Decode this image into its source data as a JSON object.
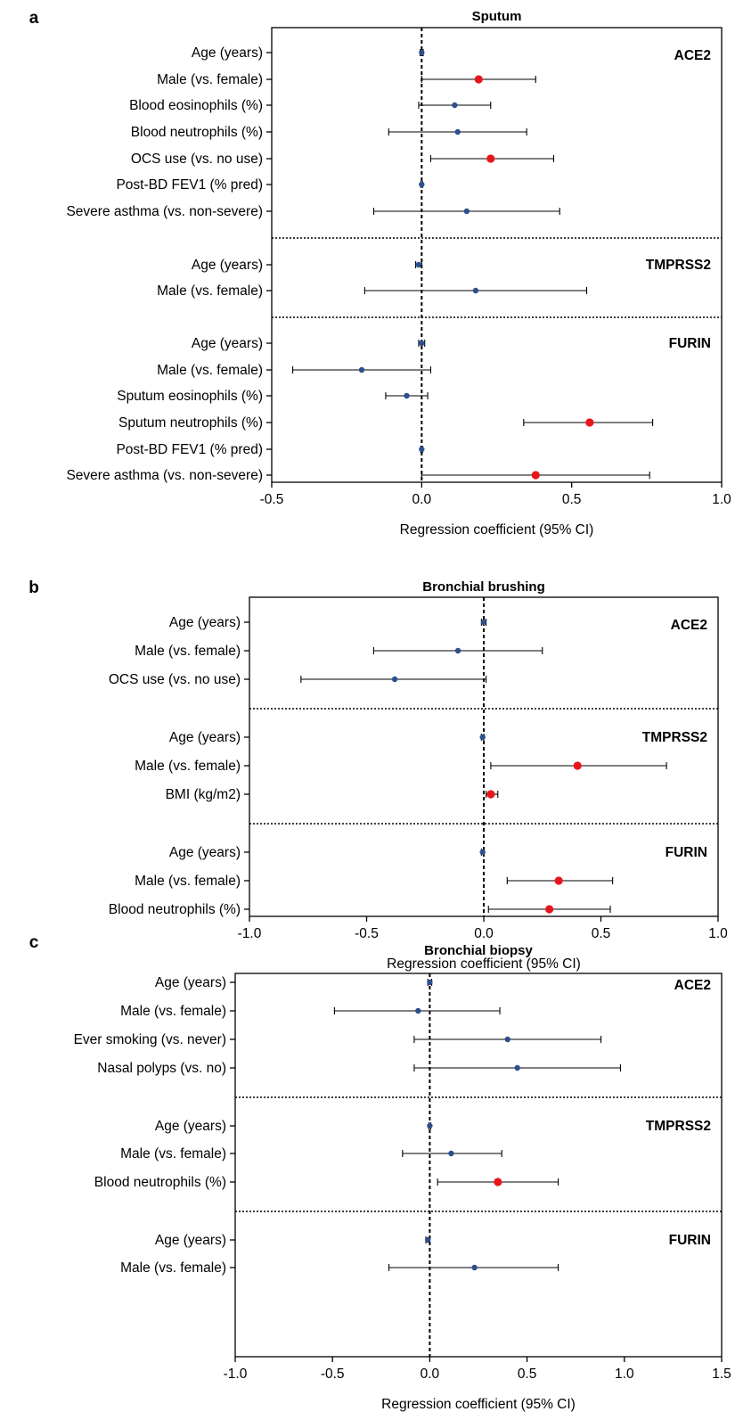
{
  "colors": {
    "significant": "#e8161b",
    "non_significant": "#2e4f8c",
    "line": "#000000"
  },
  "chart_data": [
    {
      "type": "forest",
      "panel_letter": "a",
      "title": "Sputum",
      "xlabel": "Regression coefficient (95% CI)",
      "xlim": [
        -0.5,
        1.0
      ],
      "xticks": [
        -0.5,
        0.0,
        0.5,
        1.0
      ],
      "xtick_labels": [
        "-0.5",
        "0.0",
        "0.5",
        "1.0"
      ],
      "groups": [
        {
          "name": "ACE2",
          "rows": [
            {
              "label": "Age (years)",
              "estimate": 0.0,
              "ci": [
                -0.005,
                0.005
              ],
              "significant": false
            },
            {
              "label": "Male (vs. female)",
              "estimate": 0.19,
              "ci": [
                0.0,
                0.38
              ],
              "significant": true
            },
            {
              "label": "Blood eosinophils (%)",
              "estimate": 0.11,
              "ci": [
                -0.01,
                0.23
              ],
              "significant": false
            },
            {
              "label": "Blood neutrophils (%)",
              "estimate": 0.12,
              "ci": [
                -0.11,
                0.35
              ],
              "significant": false
            },
            {
              "label": "OCS use (vs. no use)",
              "estimate": 0.23,
              "ci": [
                0.03,
                0.44
              ],
              "significant": true
            },
            {
              "label": "Post-BD FEV1 (% pred)",
              "estimate": 0.0,
              "ci": [
                -0.003,
                0.003
              ],
              "significant": false
            },
            {
              "label": "Severe asthma (vs. non-severe)",
              "estimate": 0.15,
              "ci": [
                -0.16,
                0.46
              ],
              "significant": false
            }
          ]
        },
        {
          "name": "TMPRSS2",
          "rows": [
            {
              "label": "Age (years)",
              "estimate": -0.01,
              "ci": [
                -0.02,
                0.0
              ],
              "significant": false
            },
            {
              "label": "Male (vs. female)",
              "estimate": 0.18,
              "ci": [
                -0.19,
                0.55
              ],
              "significant": false
            }
          ]
        },
        {
          "name": "FURIN",
          "rows": [
            {
              "label": "Age (years)",
              "estimate": 0.0,
              "ci": [
                -0.01,
                0.01
              ],
              "significant": false
            },
            {
              "label": "Male (vs. female)",
              "estimate": -0.2,
              "ci": [
                -0.43,
                0.03
              ],
              "significant": false
            },
            {
              "label": "Sputum eosinophils (%)",
              "estimate": -0.05,
              "ci": [
                -0.12,
                0.02
              ],
              "significant": false
            },
            {
              "label": "Sputum neutrophils (%)",
              "estimate": 0.56,
              "ci": [
                0.34,
                0.77
              ],
              "significant": true
            },
            {
              "label": "Post-BD FEV1 (% pred)",
              "estimate": 0.0,
              "ci": [
                -0.003,
                0.003
              ],
              "significant": false
            },
            {
              "label": "Severe asthma (vs. non-severe)",
              "estimate": 0.38,
              "ci": [
                0.0,
                0.76
              ],
              "significant": true
            }
          ]
        }
      ]
    },
    {
      "type": "forest",
      "panel_letter": "b",
      "title": "Bronchial brushing",
      "xlabel": "Regression coefficient (95% CI)",
      "xlim": [
        -1.0,
        1.0
      ],
      "xticks": [
        -1.0,
        -0.5,
        0.0,
        0.5,
        1.0
      ],
      "xtick_labels": [
        "-1.0",
        "-0.5",
        "0.0",
        "0.5",
        "1.0"
      ],
      "groups": [
        {
          "name": "ACE2",
          "rows": [
            {
              "label": "Age (years)",
              "estimate": 0.0,
              "ci": [
                -0.01,
                0.01
              ],
              "significant": false
            },
            {
              "label": "Male (vs. female)",
              "estimate": -0.11,
              "ci": [
                -0.47,
                0.25
              ],
              "significant": false
            },
            {
              "label": "OCS use (vs. no use)",
              "estimate": -0.38,
              "ci": [
                -0.78,
                0.01
              ],
              "significant": false
            }
          ]
        },
        {
          "name": "TMPRSS2",
          "rows": [
            {
              "label": "Age (years)",
              "estimate": -0.005,
              "ci": [
                -0.01,
                0.0
              ],
              "significant": false
            },
            {
              "label": "Male (vs. female)",
              "estimate": 0.4,
              "ci": [
                0.03,
                0.78
              ],
              "significant": true
            },
            {
              "label": "BMI (kg/m2)",
              "estimate": 0.03,
              "ci": [
                0.01,
                0.06
              ],
              "significant": true
            }
          ]
        },
        {
          "name": "FURIN",
          "rows": [
            {
              "label": "Age (years)",
              "estimate": -0.005,
              "ci": [
                -0.01,
                0.0
              ],
              "significant": false
            },
            {
              "label": "Male (vs. female)",
              "estimate": 0.32,
              "ci": [
                0.1,
                0.55
              ],
              "significant": true
            },
            {
              "label": "Blood neutrophils (%)",
              "estimate": 0.28,
              "ci": [
                0.02,
                0.54
              ],
              "significant": true
            }
          ]
        }
      ]
    },
    {
      "type": "forest",
      "panel_letter": "c",
      "title": "Bronchial biopsy",
      "xlabel": "Regression coefficient (95% CI)",
      "xlim": [
        -1.0,
        1.5
      ],
      "xticks": [
        -1.0,
        -0.5,
        0.0,
        0.5,
        1.0,
        1.5
      ],
      "xtick_labels": [
        "-1.0",
        "-0.5",
        "0.0",
        "0.5",
        "1.0",
        "1.5"
      ],
      "groups": [
        {
          "name": "ACE2",
          "rows": [
            {
              "label": "Age (years)",
              "estimate": 0.0,
              "ci": [
                -0.01,
                0.01
              ],
              "significant": false
            },
            {
              "label": "Male (vs. female)",
              "estimate": -0.06,
              "ci": [
                -0.49,
                0.36
              ],
              "significant": false
            },
            {
              "label": "Ever smoking (vs. never)",
              "estimate": 0.4,
              "ci": [
                -0.08,
                0.88
              ],
              "significant": false
            },
            {
              "label": "Nasal polyps (vs. no)",
              "estimate": 0.45,
              "ci": [
                -0.08,
                0.98
              ],
              "significant": false
            }
          ]
        },
        {
          "name": "TMPRSS2",
          "rows": [
            {
              "label": "Age (years)",
              "estimate": 0.0,
              "ci": [
                -0.005,
                0.005
              ],
              "significant": false
            },
            {
              "label": "Male (vs. female)",
              "estimate": 0.11,
              "ci": [
                -0.14,
                0.37
              ],
              "significant": false
            },
            {
              "label": "Blood neutrophils (%)",
              "estimate": 0.35,
              "ci": [
                0.04,
                0.66
              ],
              "significant": true
            }
          ]
        },
        {
          "name": "FURIN",
          "rows": [
            {
              "label": "Age (years)",
              "estimate": -0.01,
              "ci": [
                -0.02,
                0.0
              ],
              "significant": false
            },
            {
              "label": "Male (vs. female)",
              "estimate": 0.23,
              "ci": [
                -0.21,
                0.66
              ],
              "significant": false
            }
          ]
        }
      ]
    }
  ]
}
